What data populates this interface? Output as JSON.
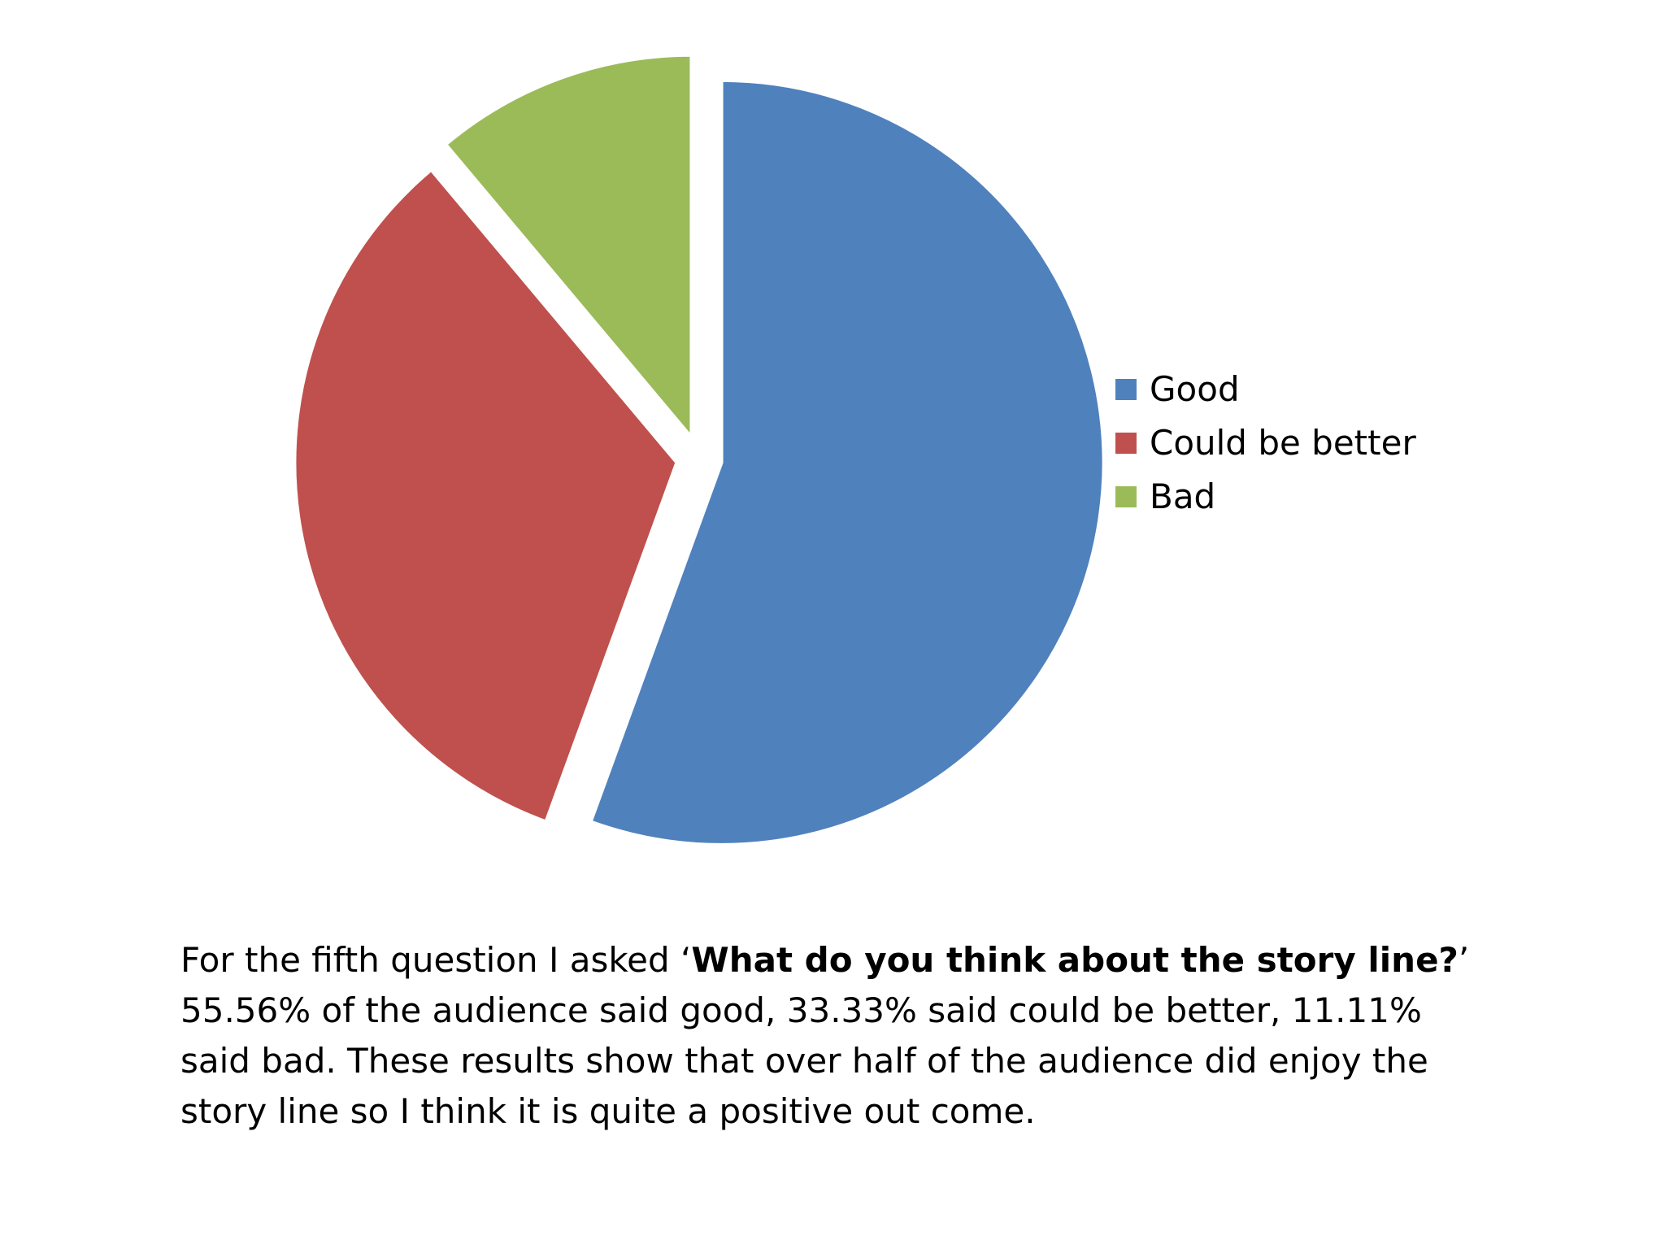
{
  "chart_data": {
    "type": "pie",
    "categories": [
      "Good",
      "Could be better",
      "Bad"
    ],
    "values": [
      55.56,
      33.33,
      11.11
    ],
    "colors": [
      "#4F81BD",
      "#C0504D",
      "#9BBB59"
    ],
    "title": "",
    "legend_position": "right",
    "exploded": true
  },
  "caption": {
    "prefix": "For the fifth question I asked ‘",
    "question": "What do you think about the story line?",
    "suffix": "’",
    "body": "55.56% of the audience said good, 33.33% said could be better, 11.11% said bad. These results show that over half of the audience did enjoy the story line so I think it is quite a positive out come."
  }
}
